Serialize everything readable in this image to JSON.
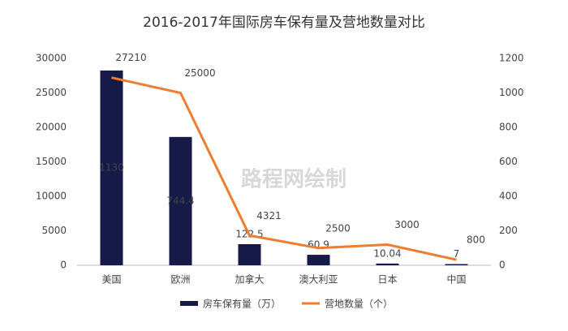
{
  "chart_data": {
    "type": "bar-line",
    "title": "2016-2017年国际房车保有量及营地数量对比",
    "watermark": "路程网绘制",
    "categories": [
      "美国",
      "欧洲",
      "加拿大",
      "澳大利亚",
      "日本",
      "中国"
    ],
    "series": [
      {
        "name": "房车保有量（万）",
        "type": "bar",
        "axis": "y2",
        "color": "#151a48",
        "values": [
          1130,
          744.4,
          122.5,
          60.9,
          10.04,
          7
        ]
      },
      {
        "name": "营地数量（个）",
        "type": "line",
        "axis": "y",
        "color": "#ed7d31",
        "values": [
          27210,
          25000,
          4321,
          2500,
          3000,
          800
        ]
      }
    ],
    "ylim": [
      0,
      30000
    ],
    "yticks": [
      0,
      5000,
      10000,
      15000,
      20000,
      25000,
      30000
    ],
    "y2lim": [
      0,
      1200
    ],
    "y2ticks": [
      0,
      200,
      400,
      600,
      800,
      1000,
      1200
    ],
    "legend": "bottom"
  }
}
